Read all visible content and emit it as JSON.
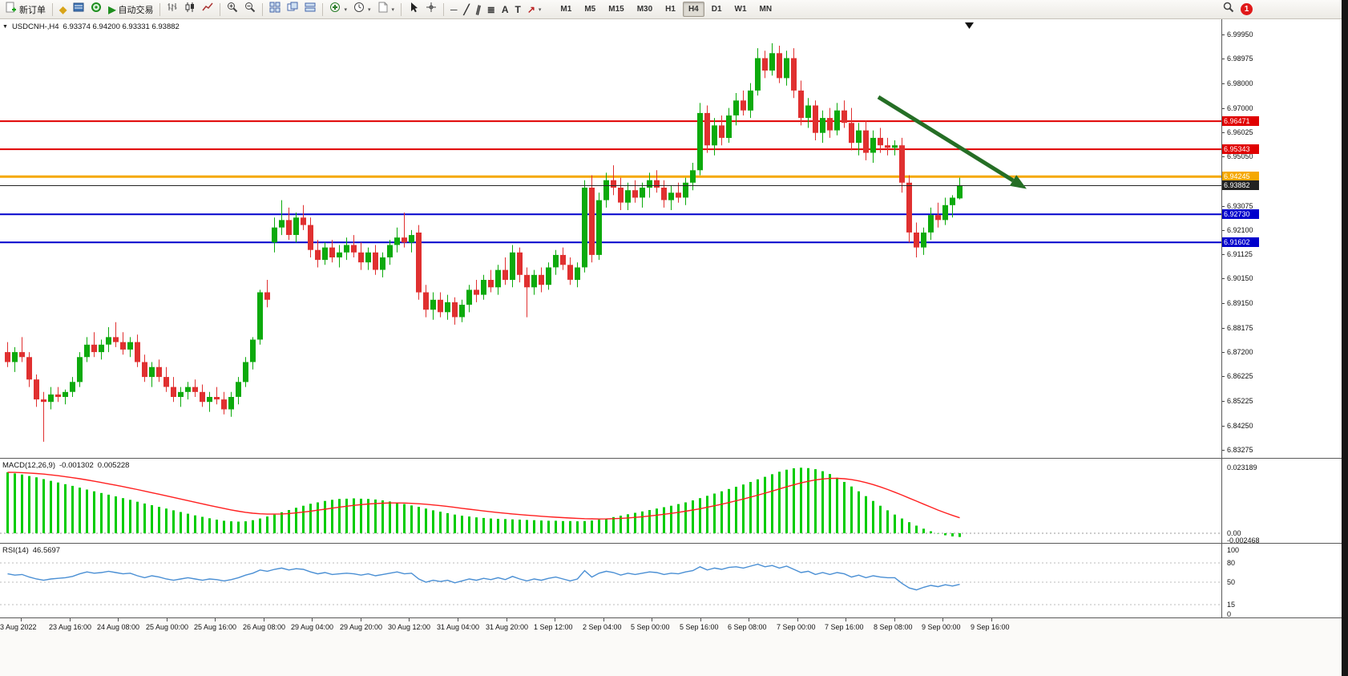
{
  "toolbar": {
    "new_order_label": "新订单",
    "auto_trading_label": "自动交易",
    "timeframes": [
      "M1",
      "M5",
      "M15",
      "M30",
      "H1",
      "H4",
      "D1",
      "W1",
      "MN"
    ],
    "active_timeframe": "H4",
    "notification_count": "1"
  },
  "chart": {
    "title": "USDCNH-,H4",
    "ohlc_text": "6.93374 6.94200 6.93331 6.93882",
    "price_axis_ticks": [
      "6.99950",
      "6.98975",
      "6.98000",
      "6.97000",
      "6.96025",
      "6.95050",
      "6.94075",
      "6.93075",
      "6.92100",
      "6.91125",
      "6.90150",
      "6.89150",
      "6.88175",
      "6.87200",
      "6.86225",
      "6.85225",
      "6.84250",
      "6.83275"
    ],
    "levels": [
      {
        "price": 6.96471,
        "label": "6.96471",
        "color": "#e00000",
        "text": "#ffffff",
        "width": 2
      },
      {
        "price": 6.95343,
        "label": "6.95343",
        "color": "#e00000",
        "text": "#ffffff",
        "width": 2
      },
      {
        "price": 6.94245,
        "label": "6.94245",
        "color": "#f5a800",
        "text": "#ffffff",
        "width": 3
      },
      {
        "price": 6.93882,
        "label": "6.93882",
        "color": "#222222",
        "text": "#ffffff",
        "width": 1,
        "is_current": true
      },
      {
        "price": 6.9273,
        "label": "6.92730",
        "color": "#0000cc",
        "text": "#ffffff",
        "width": 2
      },
      {
        "price": 6.91602,
        "label": "6.91602",
        "color": "#0000cc",
        "text": "#ffffff",
        "width": 2
      }
    ]
  },
  "macd_panel": {
    "label": "MACD(12,26,9)",
    "value": "-0.001302",
    "signal_value": "0.005228",
    "axis_ticks": [
      {
        "v": 0.023189,
        "label": "0.023189"
      },
      {
        "v": 0.0,
        "label": "0.00"
      },
      {
        "v": -0.002468,
        "label": "-0.002468"
      }
    ]
  },
  "rsi_panel": {
    "label": "RSI(14)",
    "value": "46.5697",
    "axis_ticks": [
      {
        "v": 100,
        "label": "100"
      },
      {
        "v": 80,
        "label": "80"
      },
      {
        "v": 50,
        "label": "50"
      },
      {
        "v": 15,
        "label": "15"
      },
      {
        "v": 0,
        "label": "0"
      }
    ]
  },
  "colors": {
    "candle_up": "#0caa0c",
    "candle_down": "#e03030",
    "macd_histogram": "#00cc00",
    "macd_signal": "#ff2020",
    "rsi_line": "#4a8fd4",
    "level_red": "#e00000",
    "level_blue": "#0000cc",
    "level_orange": "#f5a800",
    "current_price_line": "#222222",
    "arrow_green": "#256e25"
  },
  "chart_data": {
    "type": "candlestick+indicators",
    "symbol": "USDCNH-",
    "timeframe": "H4",
    "current_ohlc": {
      "open": 6.93374,
      "high": 6.942,
      "low": 6.93331,
      "close": 6.93882
    },
    "price_axis_range": [
      6.83275,
      6.9995
    ],
    "candles": [
      [
        6.872,
        6.876,
        6.866,
        6.868
      ],
      [
        6.868,
        6.874,
        6.864,
        6.872
      ],
      [
        6.872,
        6.878,
        6.868,
        6.87
      ],
      [
        6.87,
        6.872,
        6.858,
        6.861
      ],
      [
        6.861,
        6.863,
        6.85,
        6.853
      ],
      [
        6.853,
        6.856,
        6.836,
        6.852
      ],
      [
        6.852,
        6.858,
        6.849,
        6.855
      ],
      [
        6.855,
        6.858,
        6.852,
        6.854
      ],
      [
        6.854,
        6.857,
        6.851,
        6.856
      ],
      [
        6.856,
        6.862,
        6.854,
        6.86
      ],
      [
        6.86,
        6.872,
        6.858,
        6.87
      ],
      [
        6.87,
        6.878,
        6.868,
        6.875
      ],
      [
        6.875,
        6.88,
        6.87,
        6.872
      ],
      [
        6.872,
        6.877,
        6.869,
        6.875
      ],
      [
        6.875,
        6.882,
        6.872,
        6.878
      ],
      [
        6.878,
        6.884,
        6.874,
        6.876
      ],
      [
        6.876,
        6.88,
        6.871,
        6.873
      ],
      [
        6.873,
        6.878,
        6.87,
        6.876
      ],
      [
        6.876,
        6.879,
        6.866,
        6.868
      ],
      [
        6.868,
        6.871,
        6.86,
        6.862
      ],
      [
        6.862,
        6.868,
        6.858,
        6.866
      ],
      [
        6.866,
        6.869,
        6.86,
        6.862
      ],
      [
        6.862,
        6.866,
        6.856,
        6.858
      ],
      [
        6.858,
        6.862,
        6.852,
        6.854
      ],
      [
        6.854,
        6.858,
        6.85,
        6.856
      ],
      [
        6.856,
        6.86,
        6.853,
        6.858
      ],
      [
        6.858,
        6.861,
        6.854,
        6.856
      ],
      [
        6.856,
        6.859,
        6.85,
        6.852
      ],
      [
        6.852,
        6.856,
        6.848,
        6.854
      ],
      [
        6.854,
        6.858,
        6.851,
        6.853
      ],
      [
        6.853,
        6.856,
        6.847,
        6.849
      ],
      [
        6.849,
        6.856,
        6.846,
        6.854
      ],
      [
        6.854,
        6.862,
        6.851,
        6.86
      ],
      [
        6.86,
        6.87,
        6.858,
        6.868
      ],
      [
        6.868,
        6.878,
        6.865,
        6.877
      ],
      [
        6.877,
        6.897,
        6.875,
        6.896
      ],
      [
        6.896,
        6.901,
        6.89,
        6.893
      ],
      [
        6.916,
        6.926,
        6.912,
        6.922
      ],
      [
        6.922,
        6.933,
        6.919,
        6.925
      ],
      [
        6.925,
        6.93,
        6.917,
        6.919
      ],
      [
        6.919,
        6.928,
        6.916,
        6.926
      ],
      [
        6.926,
        6.931,
        6.921,
        6.923
      ],
      [
        6.923,
        6.926,
        6.91,
        6.913
      ],
      [
        6.913,
        6.917,
        6.906,
        6.909
      ],
      [
        6.909,
        6.916,
        6.907,
        6.914
      ],
      [
        6.914,
        6.917,
        6.908,
        6.91
      ],
      [
        6.91,
        6.915,
        6.906,
        6.912
      ],
      [
        6.912,
        6.918,
        6.909,
        6.915
      ],
      [
        6.915,
        6.919,
        6.91,
        6.912
      ],
      [
        6.912,
        6.916,
        6.905,
        6.908
      ],
      [
        6.908,
        6.914,
        6.905,
        6.912
      ],
      [
        6.912,
        6.915,
        6.903,
        6.905
      ],
      [
        6.905,
        6.912,
        6.902,
        6.91
      ],
      [
        6.91,
        6.917,
        6.907,
        6.915
      ],
      [
        6.915,
        6.922,
        6.912,
        6.918
      ],
      [
        6.918,
        6.928,
        6.914,
        6.916
      ],
      [
        6.916,
        6.921,
        6.912,
        6.919
      ],
      [
        6.92,
        6.923,
        6.893,
        6.896
      ],
      [
        6.896,
        6.899,
        6.886,
        6.889
      ],
      [
        6.889,
        6.896,
        6.885,
        6.893
      ],
      [
        6.893,
        6.896,
        6.886,
        6.888
      ],
      [
        6.888,
        6.895,
        6.885,
        6.892
      ],
      [
        6.892,
        6.894,
        6.883,
        6.886
      ],
      [
        6.886,
        6.893,
        6.884,
        6.891
      ],
      [
        6.891,
        6.899,
        6.888,
        6.897
      ],
      [
        6.897,
        6.901,
        6.892,
        6.895
      ],
      [
        6.895,
        6.903,
        6.893,
        6.901
      ],
      [
        6.901,
        6.905,
        6.896,
        6.898
      ],
      [
        6.898,
        6.907,
        6.895,
        6.905
      ],
      [
        6.905,
        6.91,
        6.899,
        6.901
      ],
      [
        6.901,
        6.915,
        6.898,
        6.912
      ],
      [
        6.912,
        6.914,
        6.9,
        6.903
      ],
      [
        6.903,
        6.906,
        6.886,
        6.898
      ],
      [
        6.898,
        6.905,
        6.895,
        6.903
      ],
      [
        6.903,
        6.906,
        6.896,
        6.899
      ],
      [
        6.899,
        6.908,
        6.897,
        6.906
      ],
      [
        6.906,
        6.913,
        6.903,
        6.911
      ],
      [
        6.911,
        6.914,
        6.905,
        6.907
      ],
      [
        6.907,
        6.91,
        6.899,
        6.901
      ],
      [
        6.901,
        6.908,
        6.898,
        6.906
      ],
      [
        6.906,
        6.941,
        6.904,
        6.938
      ],
      [
        6.938,
        6.943,
        6.908,
        6.911
      ],
      [
        6.911,
        6.936,
        6.909,
        6.933
      ],
      [
        6.933,
        6.944,
        6.93,
        6.941
      ],
      [
        6.941,
        6.947,
        6.935,
        6.938
      ],
      [
        6.938,
        6.942,
        6.929,
        6.932
      ],
      [
        6.932,
        6.94,
        6.929,
        6.937
      ],
      [
        6.937,
        6.941,
        6.932,
        6.934
      ],
      [
        6.934,
        6.94,
        6.93,
        6.938
      ],
      [
        6.938,
        6.944,
        6.934,
        6.941
      ],
      [
        6.941,
        6.945,
        6.936,
        6.938
      ],
      [
        6.938,
        6.941,
        6.93,
        6.933
      ],
      [
        6.933,
        6.939,
        6.929,
        6.936
      ],
      [
        6.936,
        6.94,
        6.932,
        6.934
      ],
      [
        6.934,
        6.942,
        6.931,
        6.94
      ],
      [
        6.94,
        6.948,
        6.937,
        6.945
      ],
      [
        6.945,
        6.972,
        6.943,
        6.968
      ],
      [
        6.968,
        6.971,
        6.952,
        6.955
      ],
      [
        6.955,
        6.966,
        6.951,
        6.963
      ],
      [
        6.963,
        6.967,
        6.955,
        6.958
      ],
      [
        6.958,
        6.97,
        6.956,
        6.967
      ],
      [
        6.967,
        6.976,
        6.963,
        6.973
      ],
      [
        6.973,
        6.977,
        6.967,
        6.969
      ],
      [
        6.969,
        6.98,
        6.966,
        6.977
      ],
      [
        6.977,
        6.994,
        6.975,
        6.99
      ],
      [
        6.99,
        6.993,
        6.982,
        6.985
      ],
      [
        6.985,
        6.996,
        6.983,
        6.992
      ],
      [
        6.992,
        6.995,
        6.98,
        6.982
      ],
      [
        6.982,
        6.993,
        6.979,
        6.99
      ],
      [
        6.99,
        6.994,
        6.974,
        6.977
      ],
      [
        6.977,
        6.981,
        6.963,
        6.966
      ],
      [
        6.966,
        6.974,
        6.962,
        6.971
      ],
      [
        6.971,
        6.973,
        6.957,
        6.96
      ],
      [
        6.96,
        6.969,
        6.956,
        6.966
      ],
      [
        6.966,
        6.97,
        6.958,
        6.961
      ],
      [
        6.961,
        6.972,
        6.959,
        6.969
      ],
      [
        6.969,
        6.973,
        6.962,
        6.964
      ],
      [
        6.964,
        6.97,
        6.953,
        6.956
      ],
      [
        6.956,
        6.964,
        6.951,
        6.961
      ],
      [
        6.961,
        6.965,
        6.949,
        6.952
      ],
      [
        6.952,
        6.961,
        6.948,
        6.958
      ],
      [
        6.958,
        6.962,
        6.952,
        6.955
      ],
      [
        6.955,
        6.958,
        6.951,
        6.954
      ],
      [
        6.954,
        6.957,
        6.951,
        6.955
      ],
      [
        6.955,
        6.958,
        6.936,
        6.94
      ],
      [
        6.94,
        6.943,
        6.916,
        6.92
      ],
      [
        6.92,
        6.924,
        6.91,
        6.914
      ],
      [
        6.914,
        6.922,
        6.911,
        6.92
      ],
      [
        6.92,
        6.93,
        6.917,
        6.927
      ],
      [
        6.927,
        6.932,
        6.922,
        6.925
      ],
      [
        6.925,
        6.934,
        6.923,
        6.931
      ],
      [
        6.931,
        6.935,
        6.926,
        6.934
      ],
      [
        6.9337,
        6.942,
        6.9333,
        6.9388
      ]
    ],
    "macd": {
      "params": [
        12,
        26,
        9
      ],
      "macd_last": -0.001302,
      "signal_last": 0.005228,
      "axis_range": [
        -0.002468,
        0.023189
      ],
      "histogram": [
        0.0215,
        0.0211,
        0.0207,
        0.0202,
        0.0197,
        0.0191,
        0.0185,
        0.0179,
        0.0173,
        0.0167,
        0.0161,
        0.0154,
        0.0148,
        0.0142,
        0.0136,
        0.013,
        0.0124,
        0.0118,
        0.0111,
        0.0105,
        0.0099,
        0.0093,
        0.0087,
        0.0081,
        0.0075,
        0.0069,
        0.0063,
        0.0058,
        0.0053,
        0.0048,
        0.0044,
        0.0042,
        0.0041,
        0.0042,
        0.0046,
        0.0052,
        0.0059,
        0.0066,
        0.0074,
        0.0082,
        0.009,
        0.0097,
        0.0104,
        0.0109,
        0.0114,
        0.0118,
        0.0121,
        0.0122,
        0.0123,
        0.0122,
        0.0121,
        0.0119,
        0.0116,
        0.0112,
        0.0108,
        0.0103,
        0.0098,
        0.0093,
        0.0087,
        0.0081,
        0.0076,
        0.0071,
        0.0066,
        0.0062,
        0.0059,
        0.0056,
        0.0054,
        0.0052,
        0.0051,
        0.005,
        0.0049,
        0.0048,
        0.0047,
        0.0046,
        0.0045,
        0.0044,
        0.0044,
        0.0043,
        0.0043,
        0.0042,
        0.0043,
        0.0045,
        0.0048,
        0.0052,
        0.0057,
        0.0062,
        0.0067,
        0.0072,
        0.0077,
        0.0082,
        0.0087,
        0.0092,
        0.0097,
        0.0103,
        0.0109,
        0.0116,
        0.0124,
        0.0132,
        0.014,
        0.0148,
        0.0156,
        0.0164,
        0.0172,
        0.0181,
        0.019,
        0.0199,
        0.0208,
        0.0217,
        0.0224,
        0.0229,
        0.0231,
        0.023,
        0.0226,
        0.0219,
        0.0209,
        0.0196,
        0.0181,
        0.0165,
        0.0148,
        0.0131,
        0.0114,
        0.0097,
        0.0081,
        0.0066,
        0.0052,
        0.0039,
        0.0027,
        0.0016,
        0.0007,
        -0.0001,
        -0.0007,
        -0.0011,
        -0.0013
      ]
    },
    "rsi": {
      "period": 14,
      "last": 46.5697,
      "levels": [
        80,
        50,
        15
      ],
      "values": [
        63,
        61,
        62,
        58,
        55,
        53,
        55,
        56,
        57,
        59,
        63,
        66,
        64,
        65,
        67,
        65,
        63,
        64,
        60,
        57,
        60,
        58,
        55,
        53,
        55,
        57,
        55,
        53,
        55,
        54,
        52,
        54,
        57,
        61,
        64,
        69,
        67,
        70,
        72,
        69,
        71,
        70,
        66,
        63,
        65,
        62,
        63,
        64,
        63,
        61,
        63,
        60,
        62,
        64,
        66,
        63,
        64,
        55,
        50,
        53,
        51,
        53,
        49,
        52,
        55,
        53,
        56,
        54,
        57,
        54,
        59,
        55,
        52,
        55,
        53,
        56,
        58,
        55,
        52,
        55,
        68,
        58,
        64,
        67,
        65,
        61,
        64,
        62,
        64,
        66,
        65,
        62,
        64,
        63,
        66,
        68,
        74,
        69,
        72,
        70,
        73,
        74,
        72,
        75,
        78,
        74,
        76,
        72,
        75,
        70,
        65,
        67,
        62,
        65,
        62,
        65,
        63,
        58,
        61,
        57,
        60,
        58,
        57,
        57,
        48,
        41,
        38,
        42,
        45,
        43,
        46,
        44,
        46.57
      ]
    },
    "time_labels": [
      "3 Aug 2022",
      "23 Aug 16:00",
      "24 Aug 08:00",
      "25 Aug 00:00",
      "25 Aug 16:00",
      "26 Aug 08:00",
      "29 Aug 04:00",
      "29 Aug 20:00",
      "30 Aug 12:00",
      "31 Aug 04:00",
      "31 Aug 20:00",
      "1 Sep 12:00",
      "2 Sep 04:00",
      "5 Sep 00:00",
      "5 Sep 16:00",
      "6 Sep 08:00",
      "7 Sep 00:00",
      "7 Sep 16:00",
      "8 Sep 08:00",
      "9 Sep 00:00",
      "9 Sep 16:00"
    ],
    "annotations": [
      {
        "type": "arrow",
        "direction": "down-right",
        "color": "#256e25"
      }
    ]
  }
}
